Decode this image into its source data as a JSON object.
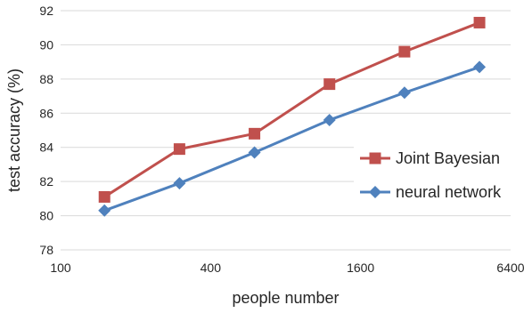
{
  "chart_data": {
    "type": "line",
    "xlabel": "people number",
    "ylabel": "test accuracy (%)",
    "x_scale": "log2",
    "xlim": [
      100,
      6400
    ],
    "ylim": [
      78,
      92
    ],
    "x_ticks": [
      100,
      400,
      1600,
      6400
    ],
    "y_ticks": [
      78,
      80,
      82,
      84,
      86,
      88,
      90,
      92
    ],
    "grid": "horizontal",
    "legend_position": "right",
    "series": [
      {
        "name": "Joint Bayesian",
        "color": "#c0504d",
        "marker": "square",
        "x": [
          150,
          300,
          600,
          1200,
          2400,
          4800
        ],
        "values": [
          81.1,
          83.9,
          84.8,
          87.7,
          89.6,
          91.3
        ]
      },
      {
        "name": "neural network",
        "color": "#4f81bd",
        "marker": "diamond",
        "x": [
          150,
          300,
          600,
          1200,
          2400,
          4800
        ],
        "values": [
          80.3,
          81.9,
          83.7,
          85.6,
          87.2,
          88.7
        ]
      }
    ]
  }
}
